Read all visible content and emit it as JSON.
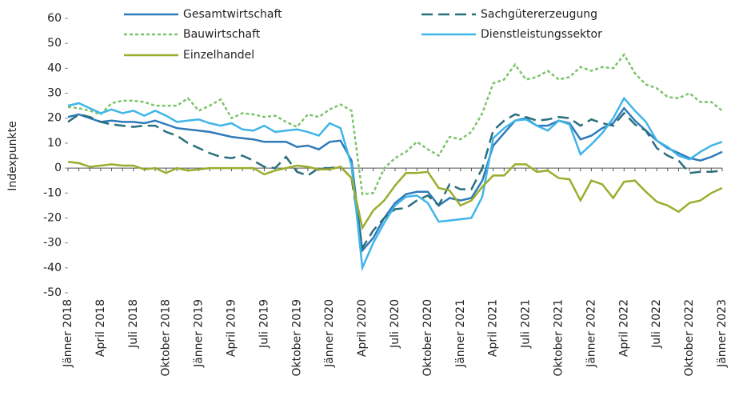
{
  "chart_data": {
    "type": "line",
    "y_label": "Indexpunkte",
    "categories": [
      "Jänner 2018",
      null,
      null,
      "April 2018",
      null,
      null,
      "Juli 2018",
      null,
      null,
      "Oktober 2018",
      null,
      null,
      "Jänner 2019",
      null,
      null,
      "April 2019",
      null,
      null,
      "Juli 2019",
      null,
      null,
      "Oktober 2019",
      null,
      null,
      "Jänner 2020",
      null,
      null,
      "April 2020",
      null,
      null,
      "Juli 2020",
      null,
      null,
      "Oktober 2020",
      null,
      null,
      "Jänner 2021",
      null,
      null,
      "April 2021",
      null,
      null,
      "Juli 2021",
      null,
      null,
      "Oktober 2021",
      null,
      null,
      "Jänner 2022",
      null,
      null,
      "April 2022",
      null,
      null,
      "Juli 2022",
      null,
      null,
      "Oktober 2022",
      null,
      null,
      "Jänner 2023"
    ],
    "series": [
      {
        "name": "Gesamtwirtschaft",
        "color": "#2f7ab9",
        "line_style": "solid",
        "values": [
          20.5,
          21.5,
          20,
          18.5,
          19,
          18.5,
          18.5,
          18,
          19,
          17.5,
          16,
          15.5,
          15,
          14.5,
          13.5,
          12.5,
          12,
          11.5,
          10.5,
          10.5,
          10.5,
          8.5,
          9,
          7.5,
          10.5,
          11,
          3,
          -33,
          -28,
          -20,
          -14,
          -10.5,
          -9.5,
          -9.5,
          -15,
          -12,
          -13,
          -12,
          -5,
          9,
          14,
          19,
          20,
          17,
          17,
          19,
          18,
          11.5,
          13,
          16,
          18,
          24,
          19,
          15,
          11,
          8,
          6,
          4,
          3,
          4.5,
          6.5
        ]
      },
      {
        "name": "Sachgütererzeugung",
        "color": "#2a6f7d",
        "line_style": "dashed",
        "values": [
          18.5,
          21.5,
          20.5,
          18.5,
          17.5,
          17,
          16.5,
          17,
          17,
          14.5,
          13,
          10,
          8,
          6,
          4.5,
          4,
          5,
          3,
          0.5,
          0,
          4.5,
          -1.5,
          -3,
          0,
          0,
          0.5,
          -4,
          -32,
          -25,
          -20,
          -16.5,
          -16,
          -13,
          -11,
          -15,
          -6.5,
          -8.5,
          -8.5,
          0,
          15,
          19,
          21.5,
          20.5,
          19,
          19.5,
          20.5,
          20,
          17,
          19.5,
          18,
          17,
          22,
          17.5,
          15,
          8,
          5,
          3,
          -2,
          -1.5,
          -1.5,
          -1
        ]
      },
      {
        "name": "Bauwirtschaft",
        "color": "#7cc46a",
        "line_style": "dotted",
        "values": [
          24.5,
          24,
          23,
          21.5,
          26,
          27,
          27,
          26.5,
          25,
          25,
          25,
          28,
          23,
          25,
          27.5,
          20,
          22,
          21.5,
          20.5,
          21,
          18.5,
          16.5,
          21.5,
          20.5,
          23.5,
          25.5,
          23,
          -10.5,
          -10,
          0,
          4,
          6.5,
          10.5,
          7.5,
          5,
          12.5,
          11.5,
          14.5,
          22,
          34,
          35.5,
          41.5,
          35.5,
          36.5,
          39,
          35.5,
          36.5,
          40.5,
          39,
          40.5,
          40,
          45.5,
          38,
          33.5,
          32,
          28.5,
          28,
          30,
          26.5,
          26.5,
          23
        ]
      },
      {
        "name": "Dienstleistungssektor",
        "color": "#3fb5e8",
        "line_style": "solid",
        "values": [
          25,
          26,
          24,
          22,
          23.5,
          22,
          23,
          21,
          23,
          21,
          18.5,
          19,
          19.5,
          18,
          17,
          18,
          15.5,
          15,
          17,
          14.5,
          15,
          15.5,
          14.5,
          13,
          18,
          16,
          1,
          -40,
          -30,
          -22,
          -15,
          -11.5,
          -11,
          -14,
          -21.5,
          -21,
          -20.5,
          -20,
          -11.5,
          12,
          16,
          19,
          19.5,
          17,
          15,
          19,
          17.5,
          5.5,
          9.5,
          14,
          20,
          28,
          23,
          18.5,
          11,
          8.5,
          5,
          3.5,
          6.5,
          9,
          10.5
        ]
      },
      {
        "name": "Einzelhandel",
        "color": "#9bad2c",
        "line_style": "solid",
        "values": [
          2.5,
          2,
          0.5,
          1,
          1.5,
          1,
          1,
          -0.5,
          0,
          -2,
          0,
          -1,
          -0.5,
          0,
          0,
          0,
          0,
          0,
          -2.5,
          -1,
          0,
          1,
          0.5,
          -0.5,
          -0.5,
          0.5,
          -4,
          -24,
          -17,
          -13,
          -7,
          -2,
          -2,
          -1.5,
          -8,
          -9,
          -15,
          -13,
          -7.5,
          -3,
          -3,
          1.5,
          1.5,
          -1.5,
          -1,
          -4,
          -4.5,
          -13,
          -5,
          -6.5,
          -12,
          -5.5,
          -5,
          -9.5,
          -13.5,
          -15,
          -17.5,
          -14,
          -13,
          -10,
          -8
        ]
      }
    ],
    "ylim": [
      -50,
      60
    ],
    "yticks": [
      -50,
      -40,
      -30,
      -20,
      -10,
      0,
      10,
      20,
      30,
      40,
      50,
      60
    ],
    "grid": false,
    "legend": "top"
  }
}
